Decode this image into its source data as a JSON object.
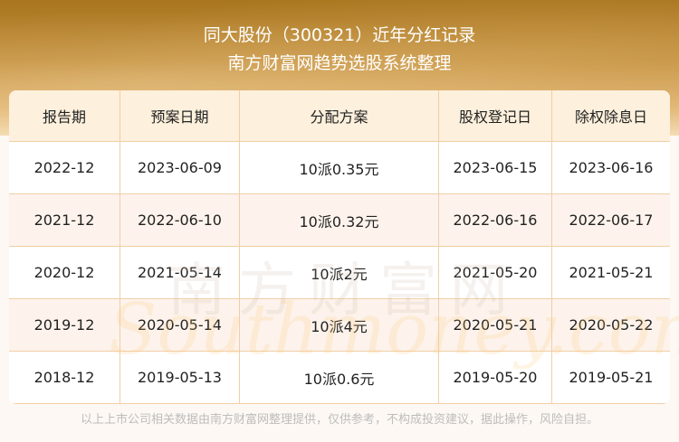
{
  "header": {
    "title": "同大股份（300321）近年分红记录",
    "subtitle": "南方财富网趋势选股系统整理"
  },
  "table": {
    "columns": [
      "报告期",
      "预案日期",
      "分配方案",
      "股权登记日",
      "除权除息日"
    ],
    "rows": [
      [
        "2022-12",
        "2023-06-09",
        "10派0.35元",
        "2023-06-15",
        "2023-06-16"
      ],
      [
        "2021-12",
        "2022-06-10",
        "10派0.32元",
        "2022-06-16",
        "2022-06-17"
      ],
      [
        "2020-12",
        "2021-05-14",
        "10派2元",
        "2021-05-20",
        "2021-05-21"
      ],
      [
        "2019-12",
        "2020-05-14",
        "10派4元",
        "2020-05-21",
        "2020-05-22"
      ],
      [
        "2018-12",
        "2019-05-13",
        "10派0.6元",
        "2019-05-20",
        "2019-05-21"
      ]
    ]
  },
  "watermark": {
    "cn": "南方财富网",
    "en": "Southmoney.com"
  },
  "footer": "以上上市公司相关数据由南方财富网整理提供，仅供参考，不构成投资建议，据此操作，风险自担。",
  "colors": {
    "banner": "#b8863a",
    "header_bg": "#fdf0dc",
    "border": "#f0cfa6",
    "alt_row": "#fdf3ec"
  }
}
